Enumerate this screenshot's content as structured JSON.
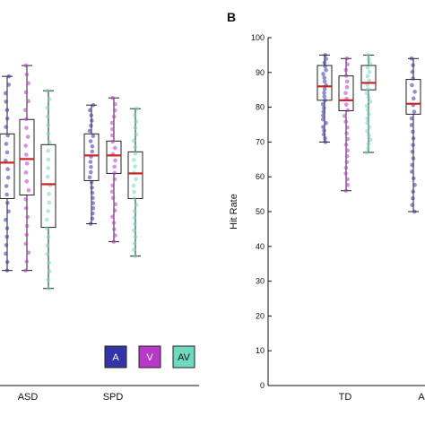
{
  "colors": {
    "A": "#3434a8",
    "V": "#b838c8",
    "AV": "#6fd9c0",
    "median": "#cc2222",
    "box": "#222222"
  },
  "chart_data": [
    {
      "type": "box",
      "panel_label": "",
      "categories": [
        "ASD",
        "SPD"
      ],
      "series": [
        {
          "name": "A",
          "stats": [
            {
              "min": 32,
              "q1": 52,
              "median": 62,
              "q3": 70,
              "max": 86
            },
            {
              "min": 45,
              "q1": 57,
              "median": 64,
              "q3": 70,
              "max": 78
            }
          ]
        },
        {
          "name": "V",
          "stats": [
            {
              "min": 32,
              "q1": 53,
              "median": 63,
              "q3": 74,
              "max": 89
            },
            {
              "min": 40,
              "q1": 59,
              "median": 64,
              "q3": 68,
              "max": 80
            }
          ]
        },
        {
          "name": "AV",
          "stats": [
            {
              "min": 27,
              "q1": 44,
              "median": 56,
              "q3": 67,
              "max": 82
            },
            {
              "min": 36,
              "q1": 52,
              "median": 59,
              "q3": 65,
              "max": 77
            }
          ]
        }
      ],
      "legend": [
        "A",
        "V",
        "AV"
      ],
      "legend_position": "bottom-right",
      "ylim": [
        0,
        100
      ]
    },
    {
      "type": "box",
      "panel_label": "B",
      "categories": [
        "TD",
        "A"
      ],
      "series": [
        {
          "name": "A",
          "stats": [
            {
              "min": 70,
              "q1": 82,
              "median": 86,
              "q3": 92,
              "max": 95
            },
            {
              "min": 50,
              "q1": 78,
              "median": 81,
              "q3": 88,
              "max": 94
            }
          ]
        },
        {
          "name": "V",
          "stats": [
            {
              "min": 56,
              "q1": 79,
              "median": 82,
              "q3": 89,
              "max": 94
            }
          ]
        },
        {
          "name": "AV",
          "stats": [
            {
              "min": 67,
              "q1": 85,
              "median": 87,
              "q3": 92,
              "max": 95
            }
          ]
        }
      ],
      "ylabel": "Hit Rate",
      "yticks": [
        0,
        10,
        20,
        30,
        40,
        50,
        60,
        70,
        80,
        90,
        100
      ],
      "ylim": [
        0,
        100
      ]
    }
  ]
}
